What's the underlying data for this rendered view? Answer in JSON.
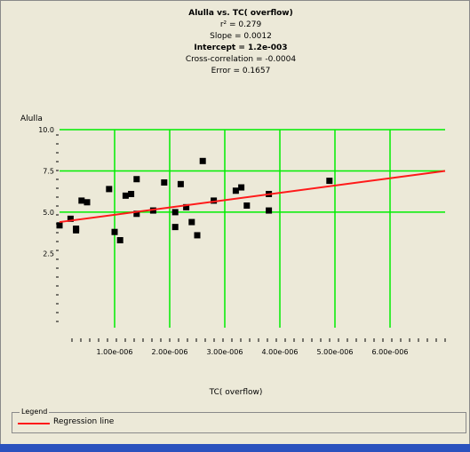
{
  "window": {
    "title_lines": [
      "Alulla vs. TC( overflow)",
      "r² = 0.279",
      "Slope = 0.0012",
      "Intercept = 1.2e-003",
      "Cross-correlation = -0.0004",
      "Error = 0.1657"
    ]
  },
  "legend": {
    "title": "Legend",
    "items": [
      {
        "label": "Regression line",
        "color": "#ff1a1a"
      }
    ]
  },
  "colors": {
    "background": "#ece9d8",
    "grid": "#00ee00",
    "points": "#000000",
    "regression": "#ff1a1a"
  },
  "chart_data": {
    "type": "scatter",
    "title": "Alulla vs. TC( overflow)",
    "xlabel": "TC( overflow)",
    "ylabel": "Alulla",
    "xlim": [
      0,
      7e-06
    ],
    "ylim": [
      -2,
      10
    ],
    "grid": true,
    "legend_placement": "bottom",
    "x_tick_labels": [
      "1.00e-006",
      "2.00e-006",
      "3.00e-006",
      "4.00e-006",
      "5.00e-006",
      "6.00e-006"
    ],
    "x_tick_values": [
      1e-06,
      2e-06,
      3e-06,
      4e-06,
      5e-06,
      6e-06
    ],
    "y_tick_labels": [
      "10.0",
      "7.5",
      "5.0",
      "2.5"
    ],
    "y_tick_values": [
      10,
      7.5,
      5,
      2.5
    ],
    "series": [
      {
        "kind": "points",
        "points": [
          {
            "x": 0.0,
            "y": 4.2
          },
          {
            "x": 2e-07,
            "y": 4.6
          },
          {
            "x": 3e-07,
            "y": 4.0
          },
          {
            "x": 3e-07,
            "y": 3.9
          },
          {
            "x": 4e-07,
            "y": 5.7
          },
          {
            "x": 5e-07,
            "y": 5.6
          },
          {
            "x": 9e-07,
            "y": 6.4
          },
          {
            "x": 1e-06,
            "y": 3.8
          },
          {
            "x": 1.1e-06,
            "y": 3.3
          },
          {
            "x": 1.2e-06,
            "y": 6.0
          },
          {
            "x": 1.3e-06,
            "y": 6.1
          },
          {
            "x": 1.4e-06,
            "y": 7.0
          },
          {
            "x": 1.4e-06,
            "y": 4.9
          },
          {
            "x": 1.7e-06,
            "y": 5.1
          },
          {
            "x": 1.9e-06,
            "y": 6.8
          },
          {
            "x": 2.1e-06,
            "y": 4.1
          },
          {
            "x": 2.1e-06,
            "y": 5.0
          },
          {
            "x": 2.2e-06,
            "y": 6.7
          },
          {
            "x": 2.3e-06,
            "y": 5.3
          },
          {
            "x": 2.4e-06,
            "y": 4.4
          },
          {
            "x": 2.5e-06,
            "y": 3.6
          },
          {
            "x": 2.6e-06,
            "y": 8.1
          },
          {
            "x": 2.8e-06,
            "y": 5.7
          },
          {
            "x": 3.2e-06,
            "y": 6.3
          },
          {
            "x": 3.3e-06,
            "y": 6.5
          },
          {
            "x": 3.4e-06,
            "y": 5.4
          },
          {
            "x": 3.8e-06,
            "y": 6.1
          },
          {
            "x": 3.8e-06,
            "y": 5.1
          },
          {
            "x": 4.9e-06,
            "y": 6.9
          }
        ]
      },
      {
        "name": "Regression line",
        "kind": "line",
        "points": [
          {
            "x": 0.0,
            "y": 4.4
          },
          {
            "x": 7e-06,
            "y": 7.5
          }
        ]
      }
    ]
  }
}
